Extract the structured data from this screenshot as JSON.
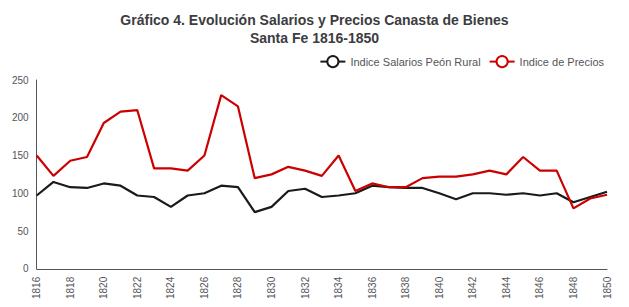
{
  "chart_data": {
    "type": "line",
    "title": "Gráfico 4. Evolución Salarios y Precios Canasta de Bienes\nSanta Fe 1816-1850",
    "x": [
      1816,
      1817,
      1818,
      1819,
      1820,
      1821,
      1822,
      1823,
      1824,
      1825,
      1826,
      1827,
      1828,
      1829,
      1830,
      1831,
      1832,
      1833,
      1834,
      1835,
      1836,
      1837,
      1838,
      1839,
      1840,
      1841,
      1842,
      1843,
      1844,
      1845,
      1846,
      1847,
      1848,
      1849,
      1850
    ],
    "series": [
      {
        "name": "Indice Salarios Peón Rural",
        "color": "#1a1a1a",
        "values": [
          97,
          115,
          108,
          107,
          113,
          110,
          97,
          95,
          82,
          97,
          100,
          110,
          108,
          75,
          82,
          103,
          106,
          95,
          97,
          100,
          110,
          108,
          107,
          107,
          100,
          92,
          100,
          100,
          98,
          100,
          97,
          100,
          88,
          95,
          102
        ]
      },
      {
        "name": "Indice de Precios",
        "color": "#cc0000",
        "values": [
          150,
          123,
          143,
          148,
          193,
          208,
          210,
          133,
          133,
          130,
          150,
          230,
          215,
          120,
          125,
          135,
          130,
          123,
          150,
          103,
          113,
          108,
          108,
          120,
          122,
          122,
          125,
          130,
          125,
          148,
          130,
          130,
          80,
          93,
          98
        ]
      }
    ],
    "xlim": [
      1816,
      1850
    ],
    "xticks": [
      1816,
      1818,
      1820,
      1822,
      1824,
      1826,
      1828,
      1830,
      1832,
      1834,
      1836,
      1838,
      1840,
      1842,
      1844,
      1846,
      1848,
      1850
    ],
    "ylim": [
      0,
      250
    ],
    "yticks": [
      0,
      50,
      100,
      150,
      200,
      250
    ],
    "grid": false,
    "legend": "upper right"
  }
}
